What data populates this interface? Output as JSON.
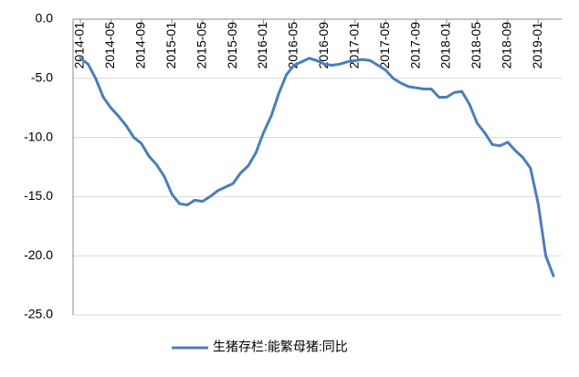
{
  "chart_data": {
    "type": "line",
    "categories": [
      "2014-01",
      null,
      null,
      null,
      "2014-05",
      null,
      null,
      null,
      "2014-09",
      null,
      null,
      null,
      "2015-01",
      null,
      null,
      null,
      "2015-05",
      null,
      null,
      null,
      "2015-09",
      null,
      null,
      null,
      "2016-01",
      null,
      null,
      null,
      "2016-05",
      null,
      null,
      null,
      "2016-09",
      null,
      null,
      null,
      "2017-01",
      null,
      null,
      null,
      "2017-05",
      null,
      null,
      null,
      "2017-09",
      null,
      null,
      null,
      "2018-01",
      null,
      null,
      null,
      "2018-05",
      null,
      null,
      null,
      "2018-09",
      null,
      null,
      null,
      "2019-01",
      null,
      null
    ],
    "series": [
      {
        "name": "生猪存栏:能繁母猪:同比",
        "color": "#4a7ebb",
        "values": [
          -3.3,
          -3.8,
          -5.0,
          -6.6,
          -7.5,
          -8.2,
          -9.0,
          -10.0,
          -10.5,
          -11.6,
          -12.3,
          -13.3,
          -14.8,
          -15.6,
          -15.7,
          -15.3,
          -15.4,
          -15.0,
          -14.5,
          -14.2,
          -13.9,
          -13.0,
          -12.4,
          -11.3,
          -9.6,
          -8.2,
          -6.3,
          -4.7,
          -3.9,
          -3.6,
          -3.3,
          -3.5,
          -3.8,
          -3.9,
          -3.8,
          -3.6,
          -3.5,
          -3.4,
          -3.5,
          -3.9,
          -4.3,
          -5.0,
          -5.4,
          -5.7,
          -5.8,
          -5.9,
          -5.9,
          -6.6,
          -6.6,
          -6.2,
          -6.1,
          -7.2,
          -8.8,
          -9.6,
          -10.6,
          -10.7,
          -10.4,
          -11.1,
          -11.7,
          -12.6,
          -15.6,
          -20.0,
          -21.7
        ]
      }
    ],
    "ylim": [
      -25,
      0
    ],
    "yticks": [
      {
        "value": 0,
        "label": "0.0"
      },
      {
        "value": -5,
        "label": "-5.0"
      },
      {
        "value": -10,
        "label": "-10.0"
      },
      {
        "value": -15,
        "label": "-15.0"
      },
      {
        "value": -20,
        "label": "-20.0"
      },
      {
        "value": -25,
        "label": "-25.0"
      }
    ],
    "grid": true,
    "legend": "bottom"
  }
}
